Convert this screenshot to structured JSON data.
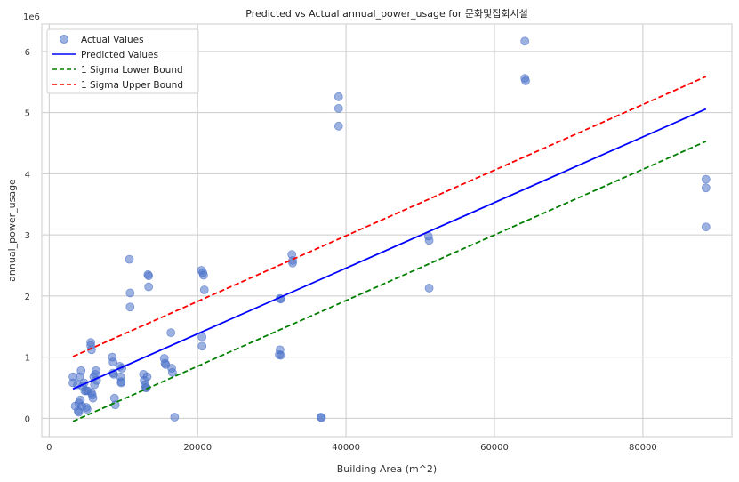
{
  "chart_data": {
    "type": "scatter",
    "title": "Predicted vs Actual annual_power_usage for 문화및집회시설",
    "xlabel": "Building Area (m^2)",
    "ylabel": "annual_power_usage",
    "y_scale_label": "1e6",
    "xlim": [
      -1000,
      92000
    ],
    "ylim": [
      -0.3,
      6.45
    ],
    "x_ticks": [
      0,
      20000,
      40000,
      60000,
      80000
    ],
    "x_tick_labels": [
      "0",
      "20000",
      "40000",
      "60000",
      "80000"
    ],
    "y_ticks": [
      0,
      1,
      2,
      3,
      4,
      5,
      6
    ],
    "y_tick_labels": [
      "0",
      "1",
      "2",
      "3",
      "4",
      "5",
      "6"
    ],
    "grid": true,
    "legend_position": "top-left",
    "legend": [
      "Actual Values",
      "Predicted Values",
      "1 Sigma Lower Bound",
      "1 Sigma Upper Bound"
    ],
    "colors": {
      "actual": "#4c72c9",
      "predicted": "#0000ff",
      "lower": "#008000",
      "upper": "#ff0000"
    },
    "series": [
      {
        "name": "Actual Values",
        "kind": "scatter",
        "points": [
          [
            3200,
            0.68
          ],
          [
            3200,
            0.58
          ],
          [
            3500,
            0.2
          ],
          [
            3800,
            0.55
          ],
          [
            3900,
            0.12
          ],
          [
            4000,
            0.1
          ],
          [
            4000,
            0.25
          ],
          [
            4100,
            0.68
          ],
          [
            4200,
            0.3
          ],
          [
            4300,
            0.78
          ],
          [
            4400,
            0.2
          ],
          [
            4500,
            0.52
          ],
          [
            4700,
            0.58
          ],
          [
            4800,
            0.45
          ],
          [
            5000,
            0.45
          ],
          [
            5000,
            0.18
          ],
          [
            5100,
            0.15
          ],
          [
            5200,
            0.45
          ],
          [
            5600,
            1.24
          ],
          [
            5600,
            1.19
          ],
          [
            5700,
            1.12
          ],
          [
            5700,
            0.42
          ],
          [
            5800,
            0.38
          ],
          [
            5900,
            0.33
          ],
          [
            6000,
            0.68
          ],
          [
            6100,
            0.55
          ],
          [
            6200,
            0.72
          ],
          [
            6300,
            0.78
          ],
          [
            6400,
            0.62
          ],
          [
            8500,
            1.0
          ],
          [
            8600,
            0.92
          ],
          [
            8600,
            0.74
          ],
          [
            8700,
            0.72
          ],
          [
            8800,
            0.33
          ],
          [
            8900,
            0.22
          ],
          [
            9500,
            0.85
          ],
          [
            9600,
            0.68
          ],
          [
            9700,
            0.6
          ],
          [
            9700,
            0.58
          ],
          [
            9800,
            0.82
          ],
          [
            10800,
            2.6
          ],
          [
            10900,
            2.05
          ],
          [
            10900,
            1.82
          ],
          [
            12700,
            0.72
          ],
          [
            12800,
            0.62
          ],
          [
            12900,
            0.55
          ],
          [
            13000,
            0.5
          ],
          [
            13100,
            0.5
          ],
          [
            13200,
            0.68
          ],
          [
            13300,
            2.35
          ],
          [
            13400,
            2.33
          ],
          [
            13400,
            2.15
          ],
          [
            15500,
            0.98
          ],
          [
            15600,
            0.9
          ],
          [
            15700,
            0.88
          ],
          [
            16400,
            1.4
          ],
          [
            16500,
            0.82
          ],
          [
            16600,
            0.75
          ],
          [
            16900,
            0.02
          ],
          [
            20500,
            2.42
          ],
          [
            20700,
            2.38
          ],
          [
            20800,
            2.34
          ],
          [
            20900,
            2.1
          ],
          [
            20600,
            1.33
          ],
          [
            20600,
            1.18
          ],
          [
            31100,
            1.96
          ],
          [
            31200,
            1.95
          ],
          [
            31100,
            1.12
          ],
          [
            31000,
            1.04
          ],
          [
            31200,
            1.03
          ],
          [
            32700,
            2.68
          ],
          [
            32800,
            2.58
          ],
          [
            32800,
            2.54
          ],
          [
            36600,
            0.02
          ],
          [
            36700,
            0.01
          ],
          [
            39000,
            5.26
          ],
          [
            39000,
            5.07
          ],
          [
            39000,
            4.78
          ],
          [
            51100,
            2.98
          ],
          [
            51200,
            2.91
          ],
          [
            51200,
            2.13
          ],
          [
            64100,
            6.17
          ],
          [
            64100,
            5.56
          ],
          [
            64200,
            5.52
          ],
          [
            88500,
            3.91
          ],
          [
            88500,
            3.77
          ],
          [
            88500,
            3.13
          ]
        ]
      },
      {
        "name": "Predicted Values",
        "kind": "line",
        "x": [
          3200,
          88500
        ],
        "y": [
          0.48,
          5.06
        ]
      },
      {
        "name": "1 Sigma Lower Bound",
        "kind": "dashed-line",
        "x": [
          3200,
          88500
        ],
        "y": [
          -0.05,
          4.53
        ]
      },
      {
        "name": "1 Sigma Upper Bound",
        "kind": "dashed-line",
        "x": [
          3200,
          88500
        ],
        "y": [
          1.01,
          5.59
        ]
      }
    ]
  }
}
